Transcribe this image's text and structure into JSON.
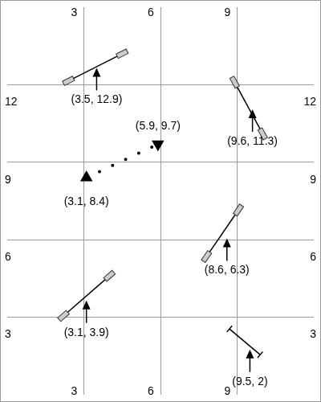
{
  "chart_data": {
    "type": "scatter",
    "xlim": [
      0,
      12
    ],
    "ylim": [
      0,
      15
    ],
    "xticks": [
      3,
      6,
      9
    ],
    "yticks": [
      3,
      6,
      9,
      12
    ],
    "grid": true,
    "markers": [
      {
        "x": 3.5,
        "y": 12.9,
        "label": "(3.5, 12.9)",
        "marker": "oars",
        "ends": [
          [
            2.4,
            12.15
          ],
          [
            4.5,
            13.2
          ]
        ]
      },
      {
        "x": 9.6,
        "y": 11.3,
        "label": "(9.6, 11.3)",
        "marker": "oars",
        "ends": [
          [
            8.9,
            12.1
          ],
          [
            10.0,
            10.1
          ]
        ]
      },
      {
        "x": 8.6,
        "y": 6.3,
        "label": "(8.6, 6.3)",
        "marker": "oars",
        "ends": [
          [
            7.8,
            5.35
          ],
          [
            9.05,
            7.15
          ]
        ]
      },
      {
        "x": 3.1,
        "y": 3.9,
        "label": "(3.1, 3.9)",
        "marker": "oars",
        "ends": [
          [
            2.2,
            3.05
          ],
          [
            4.0,
            4.6
          ]
        ]
      },
      {
        "x": 9.5,
        "y": 2,
        "label": "(9.5, 2)",
        "marker": "tee",
        "ends": [
          [
            8.7,
            2.55
          ],
          [
            9.9,
            1.55
          ]
        ]
      }
    ],
    "track": {
      "line_style": "dotted",
      "start": {
        "x": 3.1,
        "y": 8.4,
        "label": "(3.1, 8.4)"
      },
      "end": {
        "x": 5.9,
        "y": 9.7,
        "label": "(5.9, 9.7)"
      }
    }
  }
}
